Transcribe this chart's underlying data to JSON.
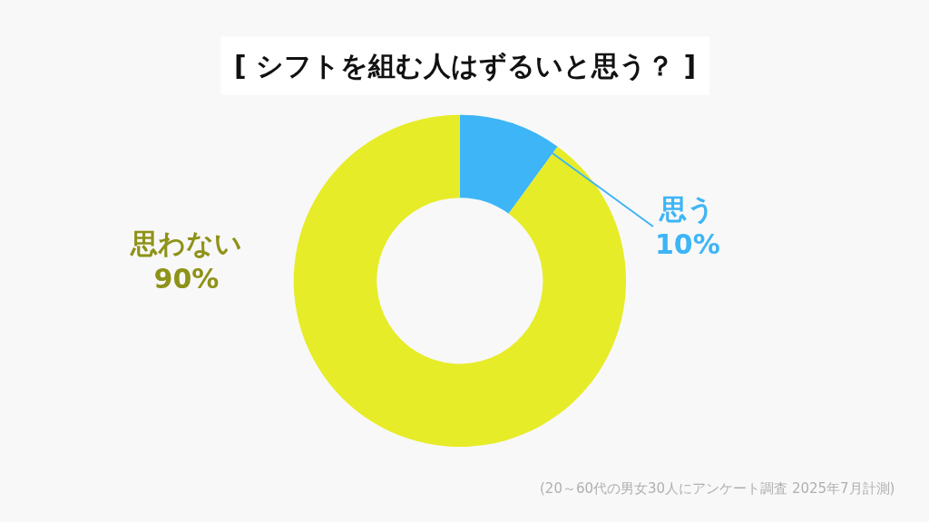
{
  "chart_data": {
    "type": "donut",
    "title": "[ シフトを組む人はずるいと思う？ ]",
    "categories": [
      "思う",
      "思わない"
    ],
    "values": [
      10,
      90
    ],
    "value_labels": [
      "10%",
      "90%"
    ],
    "colors": [
      "#3db5f7",
      "#e6ec27"
    ],
    "legend": false,
    "annotations": [
      "(20～60代の男女30人にアンケート調査 2025年7月計測)"
    ]
  }
}
